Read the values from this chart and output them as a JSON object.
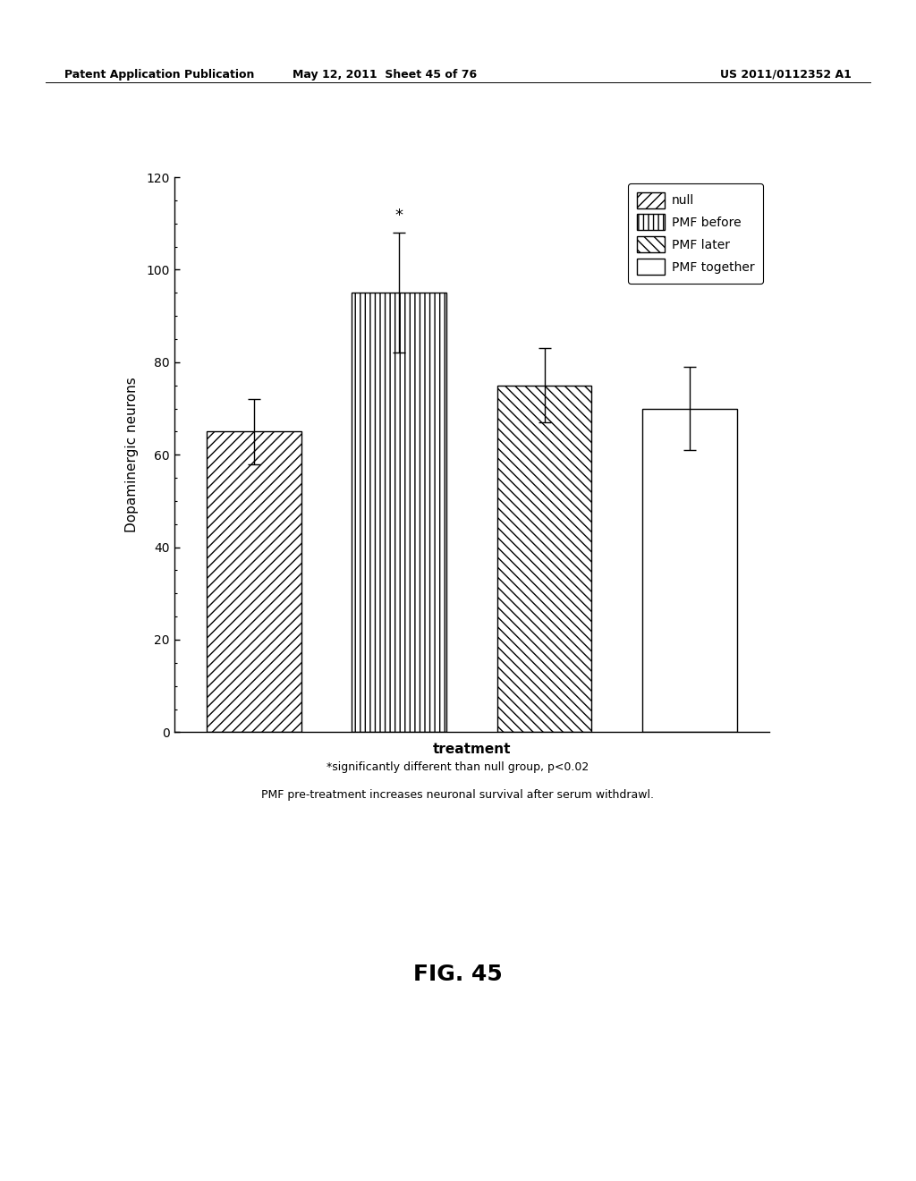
{
  "categories": [
    "null",
    "PMF before",
    "PMF later",
    "PMF together"
  ],
  "values": [
    65,
    95,
    75,
    70
  ],
  "errors": [
    7,
    13,
    8,
    9
  ],
  "hatches": [
    "///",
    "|||",
    "\\\\\\",
    ""
  ],
  "bar_colors": [
    "white",
    "white",
    "white",
    "white"
  ],
  "bar_edgecolors": [
    "black",
    "black",
    "black",
    "black"
  ],
  "xlabel": "treatment",
  "ylabel": "Dopaminergic neurons",
  "ylim": [
    0,
    120
  ],
  "yticks": [
    0,
    20,
    40,
    60,
    80,
    100,
    120
  ],
  "legend_labels": [
    "null",
    "PMF before",
    "PMF later",
    "PMF together"
  ],
  "legend_hatches": [
    "///",
    "|||",
    "\\\\\\",
    ""
  ],
  "annotation_text": "*",
  "annotation_bar_index": 1,
  "footnote1": "*significantly different than null group, p<0.02",
  "footnote2": "PMF pre-treatment increases neuronal survival after serum withdrawl.",
  "fig_label": "FIG. 45",
  "header_left": "Patent Application Publication",
  "header_mid": "May 12, 2011  Sheet 45 of 76",
  "header_right": "US 2011/0112352 A1",
  "background_color": "#ffffff",
  "axis_fontsize": 11,
  "tick_fontsize": 10,
  "legend_fontsize": 10,
  "header_fontsize": 9,
  "footnote_fontsize": 9,
  "fig_label_fontsize": 18
}
